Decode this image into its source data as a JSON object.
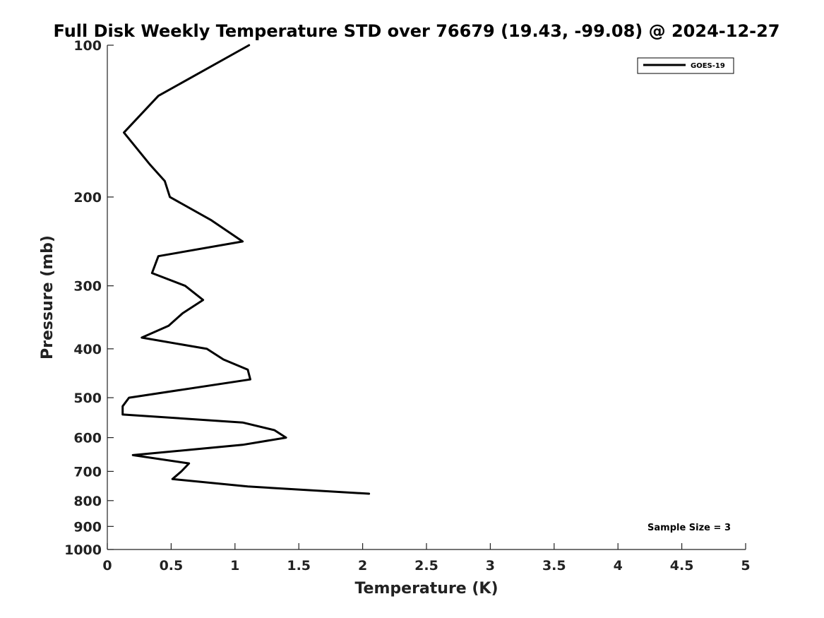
{
  "chart_data": {
    "type": "line",
    "title": "Full Disk Weekly Temperature STD over 76679 (19.43, -99.08) @ 2024-12-27",
    "xlabel": "Temperature (K)",
    "ylabel": "Pressure (mb)",
    "xlim": [
      0,
      5
    ],
    "ylim": [
      100,
      1000
    ],
    "y_scale": "log",
    "y_reversed": true,
    "x_ticks": [
      "0",
      "0.5",
      "1",
      "1.5",
      "2",
      "2.5",
      "3",
      "3.5",
      "4",
      "4.5",
      "5"
    ],
    "x_tick_values": [
      0,
      0.5,
      1,
      1.5,
      2,
      2.5,
      3,
      3.5,
      4,
      4.5,
      5
    ],
    "y_ticks": [
      "100",
      "200",
      "300",
      "400",
      "500",
      "600",
      "700",
      "800",
      "900",
      "1000"
    ],
    "y_tick_values": [
      100,
      200,
      300,
      400,
      500,
      600,
      700,
      800,
      900,
      1000
    ],
    "grid": false,
    "legend_position": "top-right",
    "series": [
      {
        "name": "GOES-19",
        "color": "#000000",
        "points": [
          {
            "x": 1.11,
            "p": 100
          },
          {
            "x": 0.4,
            "p": 126
          },
          {
            "x": 0.13,
            "p": 149
          },
          {
            "x": 0.33,
            "p": 172
          },
          {
            "x": 0.45,
            "p": 186
          },
          {
            "x": 0.49,
            "p": 200
          },
          {
            "x": 0.81,
            "p": 222
          },
          {
            "x": 1.06,
            "p": 245
          },
          {
            "x": 0.4,
            "p": 262
          },
          {
            "x": 0.35,
            "p": 283
          },
          {
            "x": 0.61,
            "p": 300
          },
          {
            "x": 0.75,
            "p": 320
          },
          {
            "x": 0.59,
            "p": 340
          },
          {
            "x": 0.48,
            "p": 360
          },
          {
            "x": 0.27,
            "p": 380
          },
          {
            "x": 0.78,
            "p": 400
          },
          {
            "x": 0.91,
            "p": 420
          },
          {
            "x": 1.1,
            "p": 440
          },
          {
            "x": 1.12,
            "p": 460
          },
          {
            "x": 0.17,
            "p": 500
          },
          {
            "x": 0.12,
            "p": 520
          },
          {
            "x": 0.12,
            "p": 540
          },
          {
            "x": 1.06,
            "p": 560
          },
          {
            "x": 1.31,
            "p": 580
          },
          {
            "x": 1.4,
            "p": 600
          },
          {
            "x": 1.06,
            "p": 620
          },
          {
            "x": 0.2,
            "p": 650
          },
          {
            "x": 0.64,
            "p": 675
          },
          {
            "x": 0.58,
            "p": 700
          },
          {
            "x": 0.51,
            "p": 725
          },
          {
            "x": 1.1,
            "p": 750
          },
          {
            "x": 2.05,
            "p": 775
          }
        ]
      }
    ],
    "annotation": "Sample Size = 3"
  }
}
